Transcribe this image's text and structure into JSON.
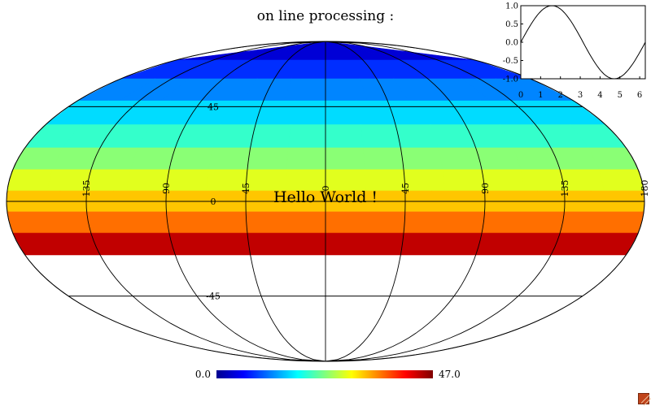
{
  "title": "on line processing :",
  "annotation": "Hello World !",
  "map": {
    "projection": "mollweide",
    "pixel_values": [
      [
        4,
        4,
        4,
        4
      ],
      [
        8,
        8,
        8,
        8,
        8,
        8,
        8,
        8
      ],
      [
        12,
        12,
        12,
        12,
        12,
        12,
        12,
        12,
        12,
        12,
        12,
        12
      ],
      [
        16,
        16,
        16,
        16,
        16,
        16,
        16,
        16,
        16,
        16,
        16,
        16,
        16,
        16,
        16,
        16
      ],
      [
        20,
        20,
        20,
        20,
        20,
        20,
        20,
        20,
        20,
        20,
        20,
        20,
        20,
        20,
        20,
        20
      ],
      [
        24,
        24,
        24,
        24,
        24,
        24,
        24,
        24,
        24,
        24,
        24,
        24,
        24,
        24,
        24,
        24
      ],
      [
        28,
        28,
        28,
        28,
        28,
        28,
        28,
        28,
        28,
        28,
        28,
        28,
        28,
        28,
        28,
        28
      ],
      [
        32,
        32,
        32,
        32,
        32,
        32,
        32,
        32,
        32,
        32,
        32,
        32
      ],
      [
        36,
        36,
        36,
        36,
        36,
        36,
        36,
        36
      ],
      [
        44,
        44,
        44,
        44
      ]
    ],
    "graticule_lon_labels": [
      "180",
      "135",
      "90",
      "45",
      "0",
      "45",
      "90",
      "135"
    ],
    "graticule_lon_values": [
      -180,
      -135,
      -90,
      -45,
      0,
      45,
      90,
      135
    ],
    "graticule_lat_labels": [
      "45",
      "0",
      "-45"
    ],
    "graticule_lat_values": [
      45,
      0,
      -45
    ]
  },
  "colorbar": {
    "min_label": "0.0",
    "max_label": "47.0",
    "min": 0.0,
    "max": 47.0,
    "colormap": "jet"
  },
  "chart_data": {
    "type": "line",
    "series": [
      {
        "function": "sin",
        "x_start": 0,
        "x_end": 6.283,
        "samples": 60
      }
    ],
    "xticks": [
      "0",
      "1",
      "2",
      "3",
      "4",
      "5",
      "6"
    ],
    "yticks": [
      "1.0",
      "0.5",
      "0.0",
      "-0.5",
      "-1.0"
    ],
    "xlim": [
      0,
      6.283
    ],
    "ylim": [
      -1,
      1
    ]
  }
}
